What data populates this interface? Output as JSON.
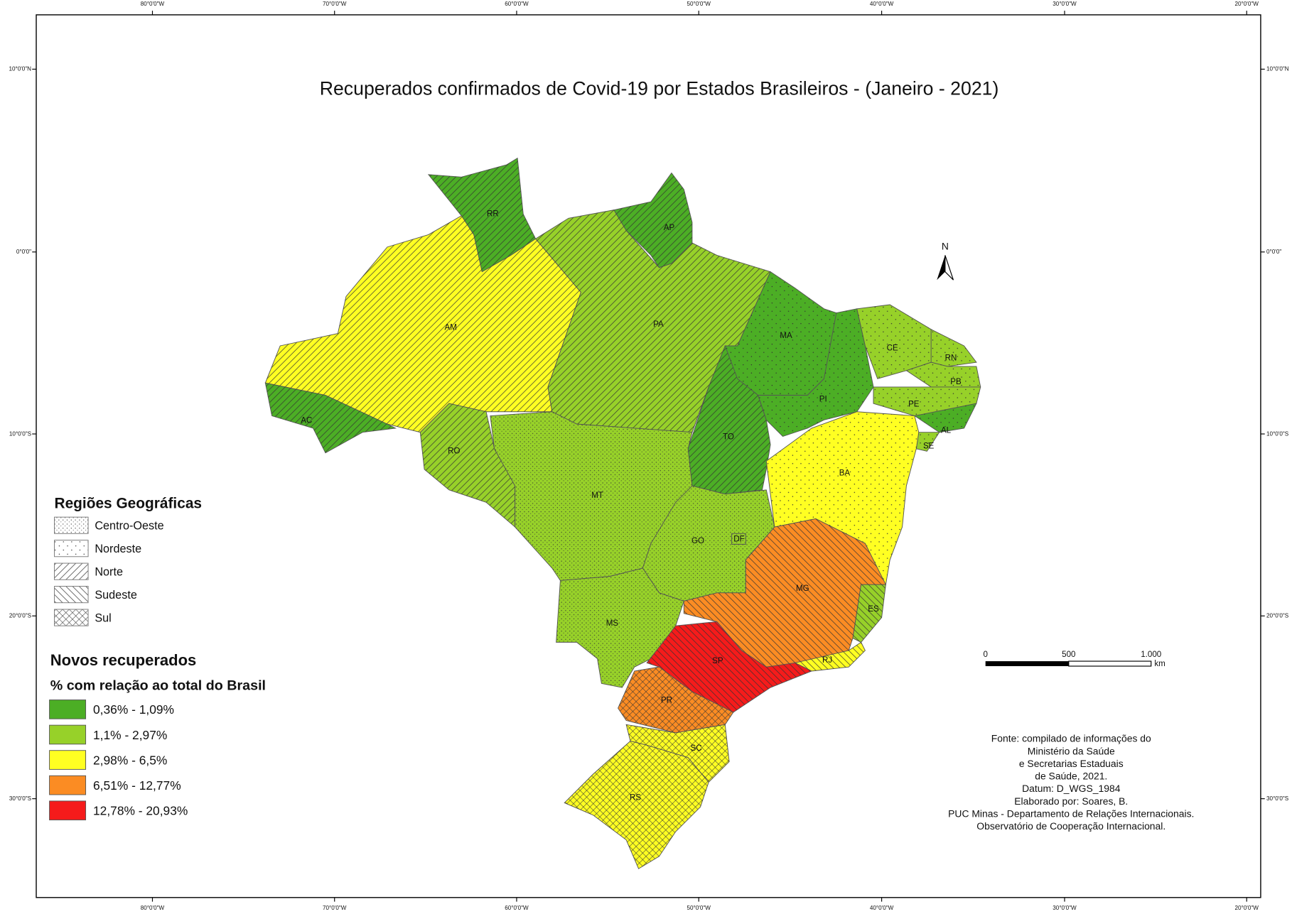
{
  "map": {
    "title": "Recuperados confirmados de Covid-19 por Estados Brasileiros - (Janeiro - 2021)",
    "longitudes": [
      "80°0'0\"W",
      "70°0'0\"W",
      "60°0'0\"W",
      "50°0'0\"W",
      "40°0'0\"W",
      "30°0'0\"W",
      "20°0'0\"W"
    ],
    "latitudes": [
      "10°0'0\"N",
      "0°0'0\"",
      "10°0'0\"S",
      "20°0'0\"S",
      "30°0'0\"S"
    ],
    "states": [
      {
        "label": "RR",
        "color": "#4cae25"
      },
      {
        "label": "AP",
        "color": "#4cae25"
      },
      {
        "label": "AM",
        "color": "#ffff22"
      },
      {
        "label": "PA",
        "color": "#97d129"
      },
      {
        "label": "AC",
        "color": "#4cae25"
      },
      {
        "label": "RO",
        "color": "#97d129"
      },
      {
        "label": "TO",
        "color": "#4cae25"
      },
      {
        "label": "MA",
        "color": "#4cae25"
      },
      {
        "label": "PI",
        "color": "#4cae25"
      },
      {
        "label": "CE",
        "color": "#97d129"
      },
      {
        "label": "RN",
        "color": "#97d129"
      },
      {
        "label": "PB",
        "color": "#97d129"
      },
      {
        "label": "PE",
        "color": "#97d129"
      },
      {
        "label": "AL",
        "color": "#4cae25"
      },
      {
        "label": "SE",
        "color": "#97d129"
      },
      {
        "label": "BA",
        "color": "#ffff22"
      },
      {
        "label": "MT",
        "color": "#97d129"
      },
      {
        "label": "GO",
        "color": "#97d129"
      },
      {
        "label": "DF",
        "color": "#97d129"
      },
      {
        "label": "MS",
        "color": "#97d129"
      },
      {
        "label": "MG",
        "color": "#fb8c23"
      },
      {
        "label": "ES",
        "color": "#97d129"
      },
      {
        "label": "RJ",
        "color": "#ffff22"
      },
      {
        "label": "SP",
        "color": "#f51b1b"
      },
      {
        "label": "PR",
        "color": "#fb8c23"
      },
      {
        "label": "SC",
        "color": "#ffff22"
      },
      {
        "label": "RS",
        "color": "#ffff22"
      }
    ],
    "north": "N",
    "legend_regions": {
      "title": "Regiões Geográficas",
      "items": [
        "Centro-Oeste",
        "Nordeste",
        "Norte",
        "Sudeste",
        "Sul"
      ]
    },
    "legend_values": {
      "title": "Novos recuperados",
      "subtitle": "% com relação ao total do Brasil",
      "items": [
        {
          "label": "0,36% - 1,09%",
          "color": "#4cae25"
        },
        {
          "label": "1,1% - 2,97%",
          "color": "#97d129"
        },
        {
          "label": "2,98% - 6,5%",
          "color": "#ffff22"
        },
        {
          "label": "6,51% - 12,77%",
          "color": "#fb8c23"
        },
        {
          "label": "12,78% - 20,93%",
          "color": "#f51b1b"
        }
      ]
    },
    "scale_bar": {
      "labels": [
        "0",
        "500",
        "1.000"
      ],
      "unit": "km"
    },
    "source": [
      "Fonte: compilado de informações do",
      "Ministério da Saúde",
      "e Secretarias Estaduais",
      "de Saúde, 2021.",
      "Datum: D_WGS_1984",
      "Elaborado por: Soares, B.",
      "PUC Minas - Departamento de Relações Internacionais.",
      "Observatório de Cooperação Internacional."
    ]
  }
}
